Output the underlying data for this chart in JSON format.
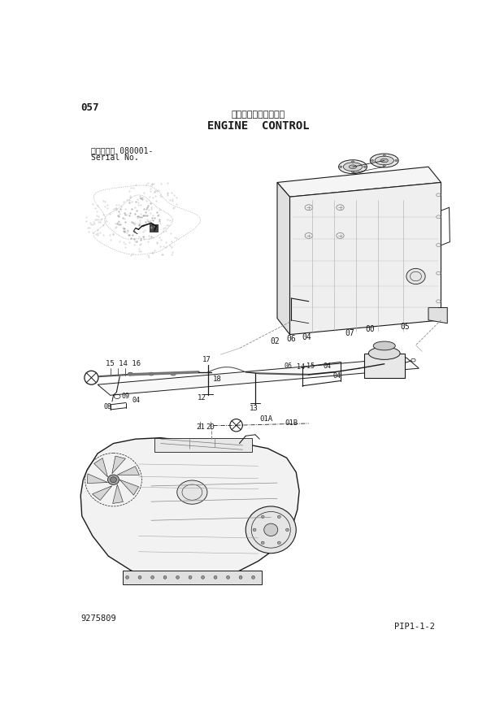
{
  "title_jp": "エンジンコントロール",
  "title_en": "ENGINE  CONTROL",
  "page_num": "057",
  "serial_label1": "適用号機　 080001-",
  "serial_label2": "Serial No.",
  "bottom_left": "9275809",
  "bottom_right": "PIP1-1-2",
  "bg_color": "#ffffff",
  "line_color": "#1a1a1a",
  "text_color": "#1a1a1a",
  "gray1": "#888888",
  "gray2": "#cccccc",
  "gray3": "#444444"
}
